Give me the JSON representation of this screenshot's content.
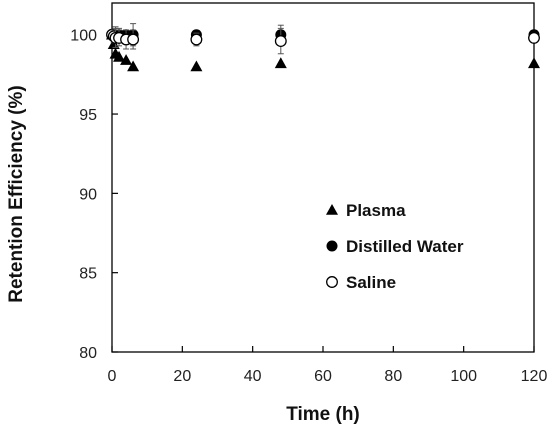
{
  "chart_data": {
    "type": "scatter",
    "xlabel": "Time (h)",
    "ylabel": "Retention Efficiency (%)",
    "xlim": [
      0,
      120
    ],
    "ylim": [
      80,
      102
    ],
    "xticks": [
      0,
      20,
      40,
      60,
      80,
      100,
      120
    ],
    "yticks": [
      80,
      85,
      90,
      95,
      100
    ],
    "grid": false,
    "legend_position": "right-center",
    "series": [
      {
        "name": "Plasma",
        "marker": "triangle",
        "color": "#000000",
        "x": [
          0,
          0.5,
          1,
          2,
          4,
          6,
          24,
          48,
          120
        ],
        "y": [
          100,
          99.4,
          98.8,
          98.6,
          98.4,
          98.0,
          98.0,
          98.2,
          98.2
        ]
      },
      {
        "name": "Distilled Water",
        "marker": "filled-circle",
        "color": "#000000",
        "x": [
          0,
          0.5,
          1,
          2,
          4,
          6,
          24,
          48,
          120
        ],
        "y": [
          100,
          100,
          100,
          100,
          100,
          100,
          100,
          100,
          100
        ],
        "err": [
          0,
          0,
          0.5,
          0.4,
          0.3,
          0.7,
          0.2,
          0.6,
          0.2
        ]
      },
      {
        "name": "Saline",
        "marker": "open-circle",
        "color": "#000000",
        "x": [
          0,
          0.5,
          1,
          2,
          4,
          6,
          24,
          48,
          120
        ],
        "y": [
          100,
          99.9,
          99.8,
          99.8,
          99.7,
          99.7,
          99.7,
          99.6,
          99.8
        ],
        "err": [
          0,
          0.4,
          0.6,
          0.5,
          0.6,
          0.6,
          0.4,
          0.8,
          0.3
        ]
      }
    ]
  }
}
